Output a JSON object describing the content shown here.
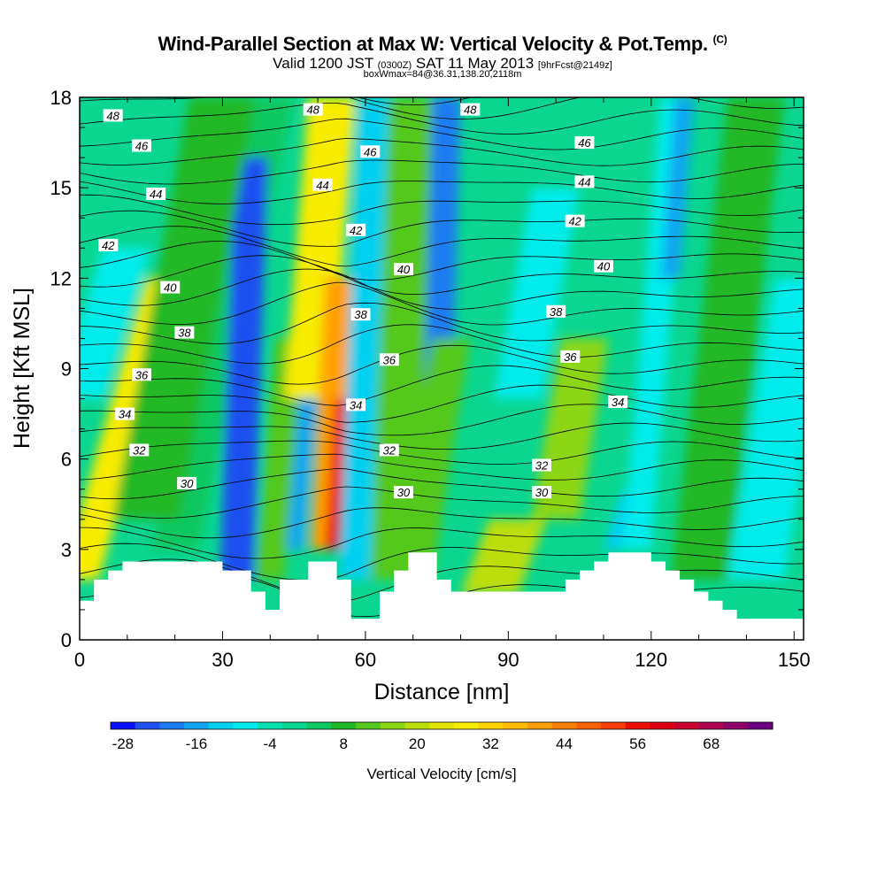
{
  "title": {
    "main": "Wind-Parallel Section at Max W: Vertical Velocity & Pot.Temp.",
    "copyright_mark": "(C)",
    "valid_prefix": "Valid 1200 JST",
    "valid_utc": "(0300Z)",
    "valid_date": "SAT 11 May 2013",
    "forecast_note": "[9hrFcst@2149z]",
    "box_info": "boxWmax=84@36.31,138.20,2118m"
  },
  "chart_data": {
    "type": "heatmap",
    "xlabel": "Distance [nm]",
    "ylabel": "Height [Kft MSL]",
    "xlim": [
      0,
      152
    ],
    "ylim": [
      0,
      18
    ],
    "x_ticks": [
      "0",
      "30",
      "60",
      "90",
      "120",
      "150"
    ],
    "y_ticks": [
      "0",
      "3",
      "6",
      "9",
      "12",
      "15",
      "18"
    ],
    "colorbar": {
      "label": "Vertical Velocity [cm/s]",
      "tick_labels": [
        "-28",
        "-16",
        "-4",
        "8",
        "20",
        "32",
        "44",
        "56",
        "68"
      ],
      "levels": [
        -28,
        -24,
        -20,
        -16,
        -12,
        -8,
        -4,
        0,
        4,
        8,
        12,
        16,
        20,
        24,
        28,
        32,
        36,
        40,
        44,
        48,
        52,
        56,
        60,
        64,
        68,
        72,
        76
      ],
      "colors": [
        "#0a10f5",
        "#1e50f0",
        "#1c7cf2",
        "#10a6f2",
        "#00d0f0",
        "#00ecec",
        "#08e0b0",
        "#0ad690",
        "#10c860",
        "#20b828",
        "#54c81e",
        "#8cd614",
        "#bcde0c",
        "#e2e402",
        "#f8ec00",
        "#ffd400",
        "#ffbc00",
        "#ffa000",
        "#ff8000",
        "#ff6000",
        "#f84000",
        "#ec1000",
        "#dc0010",
        "#c80030",
        "#b00050",
        "#8c0068",
        "#6a0080"
      ]
    },
    "contour_field": "Pot.Temp.",
    "contour_labels": [
      {
        "value": "48",
        "x": 7,
        "y": 17.4
      },
      {
        "value": "46",
        "x": 13,
        "y": 16.4
      },
      {
        "value": "44",
        "x": 16,
        "y": 14.8
      },
      {
        "value": "42",
        "x": 6,
        "y": 13.1
      },
      {
        "value": "40",
        "x": 19,
        "y": 11.7
      },
      {
        "value": "38",
        "x": 22,
        "y": 10.2
      },
      {
        "value": "36",
        "x": 13,
        "y": 8.8
      },
      {
        "value": "34",
        "x": 9.5,
        "y": 7.5
      },
      {
        "value": "32",
        "x": 12.5,
        "y": 6.3
      },
      {
        "value": "30",
        "x": 22.5,
        "y": 5.2
      },
      {
        "value": "48",
        "x": 49,
        "y": 17.6
      },
      {
        "value": "46",
        "x": 61,
        "y": 16.2
      },
      {
        "value": "44",
        "x": 51,
        "y": 15.1
      },
      {
        "value": "42",
        "x": 58,
        "y": 13.6
      },
      {
        "value": "40",
        "x": 68,
        "y": 12.3
      },
      {
        "value": "38",
        "x": 59,
        "y": 10.8
      },
      {
        "value": "36",
        "x": 65,
        "y": 9.3
      },
      {
        "value": "34",
        "x": 58,
        "y": 7.8
      },
      {
        "value": "32",
        "x": 65,
        "y": 6.3
      },
      {
        "value": "30",
        "x": 68,
        "y": 4.9
      },
      {
        "value": "48",
        "x": 82,
        "y": 17.6
      },
      {
        "value": "46",
        "x": 106,
        "y": 16.5
      },
      {
        "value": "44",
        "x": 106,
        "y": 15.2
      },
      {
        "value": "42",
        "x": 104,
        "y": 13.9
      },
      {
        "value": "40",
        "x": 110,
        "y": 12.4
      },
      {
        "value": "38",
        "x": 100,
        "y": 10.9
      },
      {
        "value": "36",
        "x": 103,
        "y": 9.4
      },
      {
        "value": "34",
        "x": 113,
        "y": 7.9
      },
      {
        "value": "32",
        "x": 97,
        "y": 5.8
      },
      {
        "value": "30",
        "x": 97,
        "y": 4.9
      }
    ],
    "terrain": {
      "x": [
        0,
        3,
        3,
        6,
        6,
        9,
        9,
        12,
        12,
        15,
        15,
        18,
        18,
        30,
        30,
        33,
        33,
        36,
        36,
        39,
        39,
        42,
        42,
        45,
        45,
        48,
        48,
        51,
        51,
        54,
        54,
        57,
        57,
        60,
        60,
        63,
        63,
        66,
        66,
        69,
        69,
        72,
        72,
        75,
        75,
        78,
        78,
        81,
        81,
        99,
        99,
        102,
        102,
        105,
        105,
        108,
        108,
        111,
        111,
        114,
        114,
        117,
        117,
        120,
        120,
        123,
        123,
        126,
        126,
        129,
        129,
        132,
        132,
        135,
        135,
        138,
        138,
        141,
        141,
        144,
        144,
        147,
        147,
        152
      ],
      "y": [
        1.3,
        1.3,
        2.0,
        2.0,
        2.3,
        2.3,
        2.6,
        2.6,
        2.6,
        2.6,
        2.6,
        2.6,
        2.6,
        2.6,
        2.3,
        2.3,
        2.3,
        2.3,
        1.6,
        1.6,
        1.0,
        1.0,
        2.0,
        2.0,
        2.0,
        2.0,
        2.6,
        2.6,
        2.6,
        2.6,
        2.0,
        2.0,
        0.7,
        0.7,
        0.7,
        0.7,
        1.6,
        1.6,
        2.3,
        2.3,
        2.9,
        2.9,
        2.9,
        2.9,
        2.0,
        2.0,
        1.6,
        1.6,
        1.6,
        1.6,
        1.6,
        1.6,
        2.0,
        2.0,
        2.3,
        2.3,
        2.6,
        2.6,
        2.9,
        2.9,
        2.9,
        2.9,
        2.9,
        2.9,
        2.6,
        2.6,
        2.3,
        2.3,
        2.0,
        2.0,
        1.6,
        1.6,
        1.3,
        1.3,
        1.0,
        1.0,
        0.7,
        0.7,
        0.7,
        0.7,
        0.7,
        0.7,
        0.7,
        0.7
      ]
    }
  }
}
